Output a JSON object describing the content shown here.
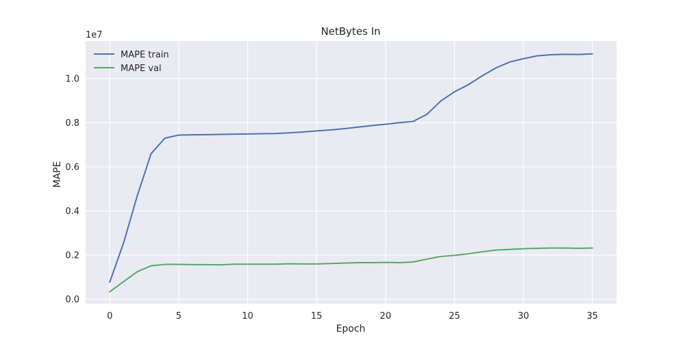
{
  "chart_data": {
    "type": "line",
    "title": "NetBytes In",
    "xlabel": "Epoch",
    "ylabel": "MAPE",
    "y_scale_label": "1e7",
    "xlim": [
      -1.75,
      36.75
    ],
    "ylim": [
      -0.02,
      1.17
    ],
    "y_scale_factor": 10000000,
    "xticks": [
      0,
      5,
      10,
      15,
      20,
      25,
      30,
      35
    ],
    "yticks": [
      0.0,
      0.2,
      0.4,
      0.6,
      0.8,
      1.0
    ],
    "ytick_labels": [
      "0.0",
      "0.2",
      "0.4",
      "0.6",
      "0.8",
      "1.0"
    ],
    "grid": true,
    "legend_position": "top-left",
    "x": [
      0,
      1,
      2,
      3,
      4,
      5,
      6,
      7,
      8,
      9,
      10,
      11,
      12,
      13,
      14,
      15,
      16,
      17,
      18,
      19,
      20,
      21,
      22,
      23,
      24,
      25,
      26,
      27,
      28,
      29,
      30,
      31,
      32,
      33,
      34,
      35
    ],
    "series": [
      {
        "name": "MAPE train",
        "color": "#4c72b0",
        "values": [
          0.078,
          0.255,
          0.47,
          0.66,
          0.73,
          0.744,
          0.745,
          0.746,
          0.747,
          0.748,
          0.749,
          0.75,
          0.751,
          0.754,
          0.758,
          0.763,
          0.767,
          0.773,
          0.78,
          0.787,
          0.793,
          0.8,
          0.806,
          0.838,
          0.898,
          0.94,
          0.972,
          1.012,
          1.048,
          1.075,
          1.09,
          1.103,
          1.108,
          1.11,
          1.109,
          1.112
        ]
      },
      {
        "name": "MAPE val",
        "color": "#55a868",
        "values": [
          0.034,
          0.08,
          0.125,
          0.152,
          0.158,
          0.158,
          0.157,
          0.157,
          0.156,
          0.159,
          0.159,
          0.159,
          0.159,
          0.161,
          0.16,
          0.16,
          0.162,
          0.164,
          0.166,
          0.166,
          0.167,
          0.166,
          0.169,
          0.182,
          0.194,
          0.199,
          0.206,
          0.215,
          0.223,
          0.226,
          0.229,
          0.231,
          0.232,
          0.232,
          0.231,
          0.232
        ]
      }
    ]
  }
}
